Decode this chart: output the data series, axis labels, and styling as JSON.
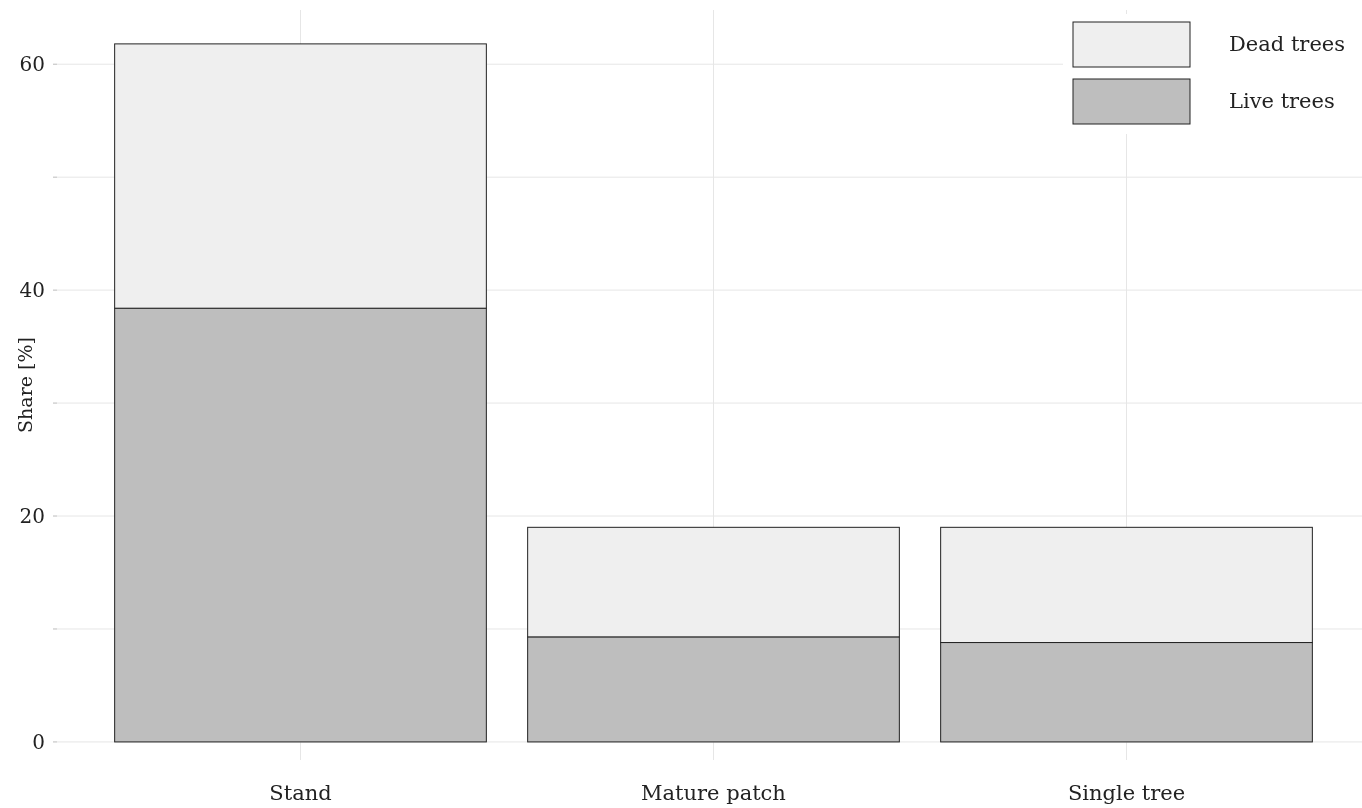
{
  "chart_data": {
    "type": "bar",
    "ylabel": "Share [%]",
    "categories": [
      "Stand",
      "Mature patch",
      "Single tree"
    ],
    "stacked": true,
    "series": [
      {
        "name": "Live trees",
        "color": "#bebebe",
        "values": [
          38.4,
          9.3,
          8.8
        ]
      },
      {
        "name": "Dead trees",
        "color": "#efefef",
        "values": [
          23.4,
          9.7,
          10.2
        ]
      }
    ],
    "ylim": [
      -1.6,
      64.8
    ],
    "yticks": [
      0,
      {
        "value": 10,
        "label": null
      },
      20,
      {
        "value": 30,
        "label": null
      },
      40,
      {
        "value": 50,
        "label": null
      },
      60
    ],
    "grid": true,
    "legend": "top right"
  }
}
